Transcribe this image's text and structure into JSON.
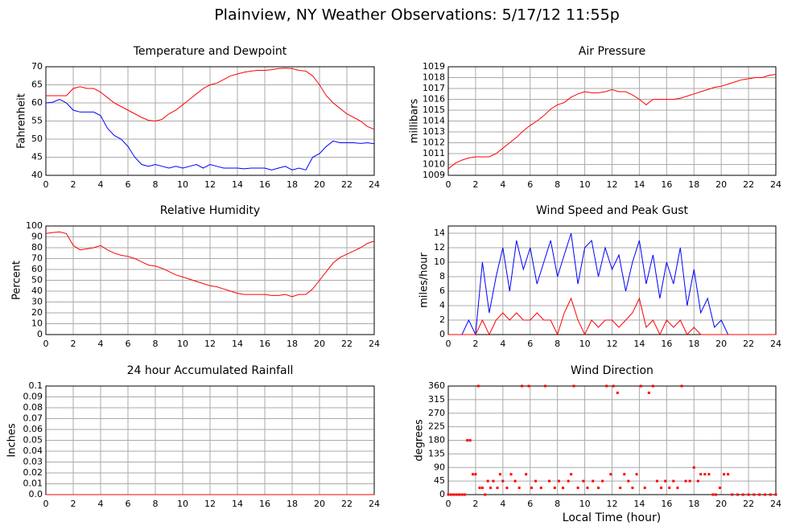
{
  "title": "Plainview, NY Weather Observations: 5/17/12 11:55p",
  "xlabel": "Local Time (hour)",
  "chart_data": [
    {
      "type": "line",
      "title": "Temperature and Dewpoint",
      "ylabel": "Fahrenheit",
      "x": [
        0,
        0.5,
        1,
        1.5,
        2,
        2.5,
        3,
        3.5,
        4,
        4.5,
        5,
        5.5,
        6,
        6.5,
        7,
        7.5,
        8,
        8.5,
        9,
        9.5,
        10,
        10.5,
        11,
        11.5,
        12,
        12.5,
        13,
        13.5,
        14,
        14.5,
        15,
        15.5,
        16,
        16.5,
        17,
        17.5,
        18,
        18.5,
        19,
        19.5,
        20,
        20.5,
        21,
        21.5,
        22,
        22.5,
        23,
        23.5,
        24
      ],
      "series": [
        {
          "name": "Temperature",
          "color": "#ff0000",
          "values": [
            62,
            62,
            62,
            62,
            64,
            64.5,
            64,
            64,
            63,
            61.5,
            60,
            59,
            58,
            57,
            56,
            55.2,
            55,
            55.5,
            57,
            58,
            59.5,
            61,
            62.5,
            64,
            65,
            65.5,
            66.5,
            67.5,
            68,
            68.5,
            68.8,
            69,
            69,
            69.2,
            69.5,
            69.6,
            69.5,
            69,
            68.8,
            67.5,
            65,
            62,
            60,
            58.5,
            57,
            56,
            55,
            53.5,
            52.7
          ]
        },
        {
          "name": "Dewpoint",
          "color": "#0000ff",
          "values": [
            60,
            60.2,
            61,
            60,
            58,
            57.5,
            57.5,
            57.5,
            56.5,
            53,
            51,
            50,
            48,
            45,
            43,
            42.5,
            43,
            42.5,
            42,
            42.5,
            42,
            42.5,
            43,
            42,
            43,
            42.5,
            42,
            42,
            42,
            41.8,
            42,
            42,
            42,
            41.5,
            42,
            42.5,
            41.5,
            42,
            41.5,
            45,
            46,
            48,
            49.5,
            49,
            49,
            49,
            48.8,
            49,
            48.7
          ]
        }
      ],
      "xlim": [
        0,
        24
      ],
      "xticks": [
        0,
        2,
        4,
        6,
        8,
        10,
        12,
        14,
        16,
        18,
        20,
        22,
        24
      ],
      "ylim": [
        40,
        70
      ],
      "yticks": [
        40,
        45,
        50,
        55,
        60,
        65,
        70
      ],
      "grid": true
    },
    {
      "type": "line",
      "title": "Air Pressure",
      "ylabel": "millibars",
      "x": [
        0,
        0.5,
        1,
        1.5,
        2,
        2.5,
        3,
        3.5,
        4,
        4.5,
        5,
        5.5,
        6,
        6.5,
        7,
        7.5,
        8,
        8.5,
        9,
        9.5,
        10,
        10.5,
        11,
        11.5,
        12,
        12.5,
        13,
        13.5,
        14,
        14.5,
        15,
        15.5,
        16,
        16.5,
        17,
        17.5,
        18,
        18.5,
        19,
        19.5,
        20,
        20.5,
        21,
        21.5,
        22,
        22.5,
        23,
        23.5,
        24
      ],
      "series": [
        {
          "name": "Pressure",
          "color": "#ff0000",
          "values": [
            1009.6,
            1010.1,
            1010.4,
            1010.6,
            1010.7,
            1010.7,
            1010.7,
            1011.0,
            1011.5,
            1012.0,
            1012.5,
            1013.1,
            1013.6,
            1014.0,
            1014.5,
            1015.1,
            1015.5,
            1015.7,
            1016.2,
            1016.5,
            1016.7,
            1016.6,
            1016.6,
            1016.7,
            1016.9,
            1016.7,
            1016.7,
            1016.4,
            1016.0,
            1015.5,
            1016.0,
            1016.0,
            1016.0,
            1016.0,
            1016.1,
            1016.3,
            1016.5,
            1016.7,
            1016.9,
            1017.1,
            1017.2,
            1017.4,
            1017.6,
            1017.8,
            1017.9,
            1018.0,
            1018.0,
            1018.2,
            1018.3
          ]
        }
      ],
      "xlim": [
        0,
        24
      ],
      "xticks": [
        0,
        2,
        4,
        6,
        8,
        10,
        12,
        14,
        16,
        18,
        20,
        22,
        24
      ],
      "ylim": [
        1009,
        1019
      ],
      "yticks": [
        1009,
        1010,
        1011,
        1012,
        1013,
        1014,
        1015,
        1016,
        1017,
        1018,
        1019
      ],
      "grid": true
    },
    {
      "type": "line",
      "title": "Relative Humidity",
      "ylabel": "Percent",
      "x": [
        0,
        0.5,
        1,
        1.5,
        2,
        2.5,
        3,
        3.5,
        4,
        4.5,
        5,
        5.5,
        6,
        6.5,
        7,
        7.5,
        8,
        8.5,
        9,
        9.5,
        10,
        10.5,
        11,
        11.5,
        12,
        12.5,
        13,
        13.5,
        14,
        14.5,
        15,
        15.5,
        16,
        16.5,
        17,
        17.5,
        18,
        18.5,
        19,
        19.5,
        20,
        20.5,
        21,
        21.5,
        22,
        22.5,
        23,
        23.5,
        24
      ],
      "series": [
        {
          "name": "Humidity",
          "color": "#ff0000",
          "values": [
            93,
            94,
            94.5,
            93,
            82,
            78,
            79,
            80,
            82,
            78,
            75,
            73,
            72,
            70,
            67,
            64,
            63,
            61,
            58,
            55,
            53,
            51,
            49,
            47,
            45,
            44,
            42,
            40,
            38,
            37,
            37,
            37,
            37,
            36,
            36,
            37,
            35,
            37,
            37,
            42,
            50,
            58,
            66,
            71,
            74,
            77,
            80,
            84,
            86
          ]
        }
      ],
      "xlim": [
        0,
        24
      ],
      "xticks": [
        0,
        2,
        4,
        6,
        8,
        10,
        12,
        14,
        16,
        18,
        20,
        22,
        24
      ],
      "ylim": [
        0,
        100
      ],
      "yticks": [
        0,
        10,
        20,
        30,
        40,
        50,
        60,
        70,
        80,
        90,
        100
      ],
      "grid": true
    },
    {
      "type": "line",
      "title": "Wind Speed and Peak Gust",
      "ylabel": "miles/hour",
      "x": [
        0,
        0.5,
        1,
        1.5,
        2,
        2.5,
        3,
        3.5,
        4,
        4.5,
        5,
        5.5,
        6,
        6.5,
        7,
        7.5,
        8,
        8.5,
        9,
        9.5,
        10,
        10.5,
        11,
        11.5,
        12,
        12.5,
        13,
        13.5,
        14,
        14.5,
        15,
        15.5,
        16,
        16.5,
        17,
        17.5,
        18,
        18.5,
        19,
        19.5,
        20,
        20.5,
        21,
        21.5,
        22,
        22.5,
        23,
        23.5,
        24
      ],
      "series": [
        {
          "name": "Wind Speed",
          "color": "#0000ff",
          "values": [
            0,
            0,
            0,
            2,
            0,
            10,
            3,
            8,
            12,
            6,
            13,
            9,
            12,
            7,
            10,
            13,
            8,
            11,
            14,
            7,
            12,
            13,
            8,
            12,
            9,
            11,
            6,
            10,
            13,
            7,
            11,
            5,
            10,
            7,
            12,
            4,
            9,
            3,
            5,
            1,
            2,
            0,
            0,
            0,
            0,
            0,
            0,
            0,
            0
          ]
        },
        {
          "name": "Peak Gust",
          "color": "#ff0000",
          "values": [
            0,
            0,
            0,
            0,
            0,
            2,
            0,
            2,
            3,
            2,
            3,
            2,
            2,
            3,
            2,
            2,
            0,
            3,
            5,
            2,
            0,
            2,
            1,
            2,
            2,
            1,
            2,
            3,
            5,
            1,
            2,
            0,
            2,
            1,
            2,
            0,
            1,
            0,
            0,
            0,
            0,
            0,
            0,
            0,
            0,
            0,
            0,
            0,
            0
          ]
        }
      ],
      "xlim": [
        0,
        24
      ],
      "xticks": [
        0,
        2,
        4,
        6,
        8,
        10,
        12,
        14,
        16,
        18,
        20,
        22,
        24
      ],
      "ylim": [
        0,
        15
      ],
      "yticks": [
        0,
        2,
        4,
        6,
        8,
        10,
        12,
        14
      ],
      "grid": true
    },
    {
      "type": "line",
      "title": "24 hour Accumulated Rainfall",
      "ylabel": "Inches",
      "x": [
        0,
        24
      ],
      "series": [
        {
          "name": "Rainfall",
          "color": "#ff0000",
          "values": [
            0,
            0
          ]
        }
      ],
      "xlim": [
        0,
        24
      ],
      "xticks": [
        0,
        2,
        4,
        6,
        8,
        10,
        12,
        14,
        16,
        18,
        20,
        22,
        24
      ],
      "ylim": [
        0,
        0.1
      ],
      "yticks": [
        {
          "value": 0,
          "label": "0.0"
        },
        0.01,
        0.02,
        0.03,
        0.04,
        0.05,
        0.06,
        0.07,
        0.08,
        0.09,
        0.1
      ],
      "grid": true
    },
    {
      "type": "scatter",
      "title": "Wind Direction",
      "ylabel": "degrees",
      "color": "#ff0000",
      "x": [
        0,
        0.2,
        0.4,
        0.6,
        0.8,
        1.0,
        1.2,
        1.4,
        1.6,
        1.8,
        2.0,
        2.2,
        2.3,
        2.5,
        2.7,
        2.9,
        3.1,
        3.3,
        3.6,
        3.8,
        4.0,
        4.3,
        4.6,
        4.9,
        5.2,
        5.4,
        5.7,
        5.9,
        6.1,
        6.4,
        6.8,
        7.1,
        7.4,
        7.8,
        8.1,
        8.4,
        8.8,
        9.0,
        9.2,
        9.5,
        9.9,
        10.2,
        10.6,
        11.0,
        11.3,
        11.6,
        11.9,
        12.1,
        12.4,
        12.6,
        12.9,
        13.2,
        13.5,
        13.8,
        14.1,
        14.4,
        14.7,
        15.0,
        15.3,
        15.6,
        15.9,
        16.2,
        16.5,
        16.8,
        17.1,
        17.4,
        17.7,
        18.0,
        18.3,
        18.5,
        18.8,
        19.1,
        19.4,
        19.6,
        19.9,
        20.2,
        20.5,
        20.8,
        21.2,
        21.6,
        22.0,
        22.4,
        22.8,
        23.2,
        23.6,
        24
      ],
      "values": [
        0,
        0,
        0,
        0,
        0,
        0,
        0,
        180,
        180,
        67.5,
        67.5,
        360,
        22.5,
        22.5,
        0,
        45,
        22.5,
        45,
        22.5,
        67.5,
        45,
        22.5,
        67.5,
        45,
        22.5,
        360,
        67.5,
        360,
        22.5,
        45,
        22.5,
        360,
        45,
        22.5,
        45,
        22.5,
        45,
        67.5,
        360,
        22.5,
        45,
        22.5,
        45,
        22.5,
        45,
        360,
        67.5,
        360,
        337.5,
        22.5,
        67.5,
        45,
        22.5,
        67.5,
        360,
        22.5,
        337.5,
        360,
        45,
        22.5,
        45,
        22.5,
        45,
        22.5,
        360,
        45,
        45,
        90,
        45,
        67.5,
        67.5,
        67.5,
        0,
        0,
        22.5,
        67.5,
        67.5,
        0,
        0,
        0,
        0,
        0,
        0,
        0,
        0,
        0
      ],
      "xlim": [
        0,
        24
      ],
      "xticks": [
        0,
        2,
        4,
        6,
        8,
        10,
        12,
        14,
        16,
        18,
        20,
        22,
        24
      ],
      "ylim": [
        0,
        360
      ],
      "yticks": [
        0,
        45,
        90,
        135,
        180,
        225,
        270,
        315,
        360
      ],
      "grid": true
    }
  ]
}
